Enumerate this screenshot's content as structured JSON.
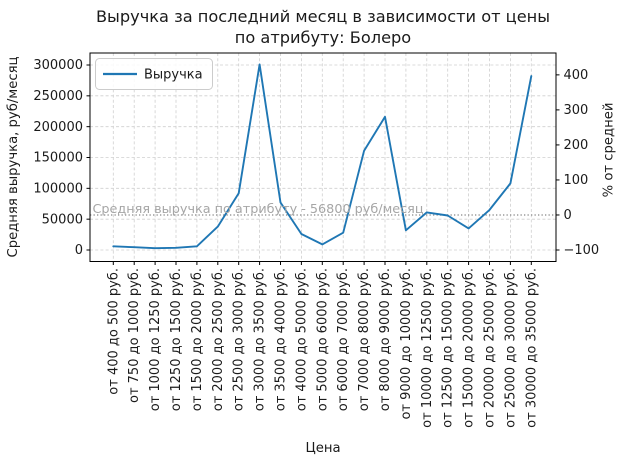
{
  "chart_data": {
    "type": "line",
    "title": "Выручка за последний месяц в зависимости от цены по атрибуту: Болеро",
    "title_lines": [
      "Выручка за последний месяц в зависимости от цены",
      "по атрибуту: Болеро"
    ],
    "xlabel": "Цена",
    "ylabel": "Средняя выручка, руб/месяц",
    "ylabel_right": "% от средней",
    "legend": [
      {
        "label": "Выручка",
        "color": "#1f77b4"
      }
    ],
    "legend_position": "upper left",
    "grid": true,
    "categories": [
      "от 400 до 500 руб.",
      "от 750 до 1000 руб.",
      "от 1000 до 1250 руб.",
      "от 1250 до 1500 руб.",
      "от 1500 до 2000 руб.",
      "от 2000 до 2500 руб.",
      "от 2500 до 3000 руб.",
      "от 3000 до 3500 руб.",
      "от 3500 до 4000 руб.",
      "от 4000 до 5000 руб.",
      "от 5000 до 6000 руб.",
      "от 6000 до 7000 руб.",
      "от 7000 до 8000 руб.",
      "от 8000 до 9000 руб.",
      "от 9000 до 10000 руб.",
      "от 10000 до 12500 руб.",
      "от 12500 до 15000 руб.",
      "от 15000 до 20000 руб.",
      "от 20000 до 25000 руб.",
      "от 25000 до 30000 руб.",
      "от 30000 до 35000 руб."
    ],
    "values": [
      6000,
      4500,
      3000,
      3500,
      6000,
      38000,
      92000,
      301000,
      77000,
      26000,
      9000,
      28000,
      161000,
      216000,
      32000,
      61000,
      56000,
      35000,
      65000,
      108000,
      282000
    ],
    "average_value": 56800,
    "average_label": "Средняя выручка по атрибуту - 56800 руб/месяц",
    "yticks_left": [
      0,
      50000,
      100000,
      150000,
      200000,
      250000,
      300000
    ],
    "yticks_right": [
      -100,
      0,
      100,
      200,
      300,
      400
    ],
    "ylim_left": [
      -18500,
      316000
    ],
    "right_axis_formula": "percent_of_average: (value/56800 - 1) * 100",
    "colors": {
      "line": "#1f77b4",
      "grid": "#cfcfcf",
      "average_line": "#9a9a9a",
      "annotation_text": "#a6a6a6",
      "spine": "#000000"
    }
  }
}
